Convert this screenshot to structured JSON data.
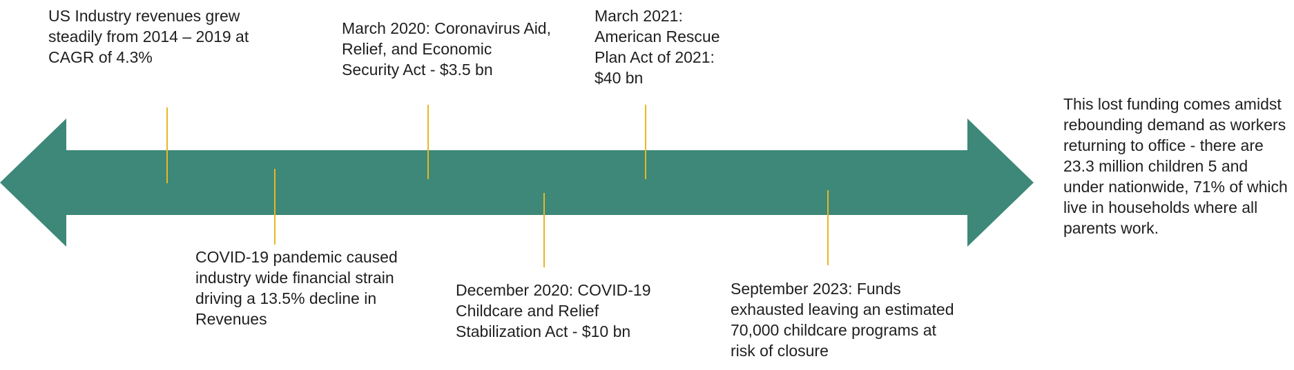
{
  "colors": {
    "arrow": "#3d8878",
    "connector": "#e8b820",
    "text": "#1f1f1f"
  },
  "timeline": {
    "events": [
      {
        "text": "US Industry revenues grew steadily from 2014 – 2019 at CAGR of 4.3%",
        "position": "above"
      },
      {
        "text": "COVID-19 pandemic caused industry wide financial strain driving a 13.5% decline in Revenues",
        "position": "below"
      },
      {
        "text": "March 2020: Coronavirus Aid, Relief, and Economic Security Act - $3.5 bn",
        "position": "above"
      },
      {
        "text": "December 2020: COVID-19 Childcare and Relief Stabilization Act - $10 bn",
        "position": "below"
      },
      {
        "text": "March 2021: American Rescue Plan Act of 2021: $40 bn",
        "position": "above"
      },
      {
        "text": "September 2023: Funds exhausted leaving an estimated 70,000 childcare programs at risk of closure",
        "position": "below"
      }
    ]
  },
  "side_note": {
    "text": "This lost funding comes amidst rebounding demand as workers returning to office - there are 23.3 million children 5 and under nationwide, 71% of which live in households where all parents work."
  }
}
